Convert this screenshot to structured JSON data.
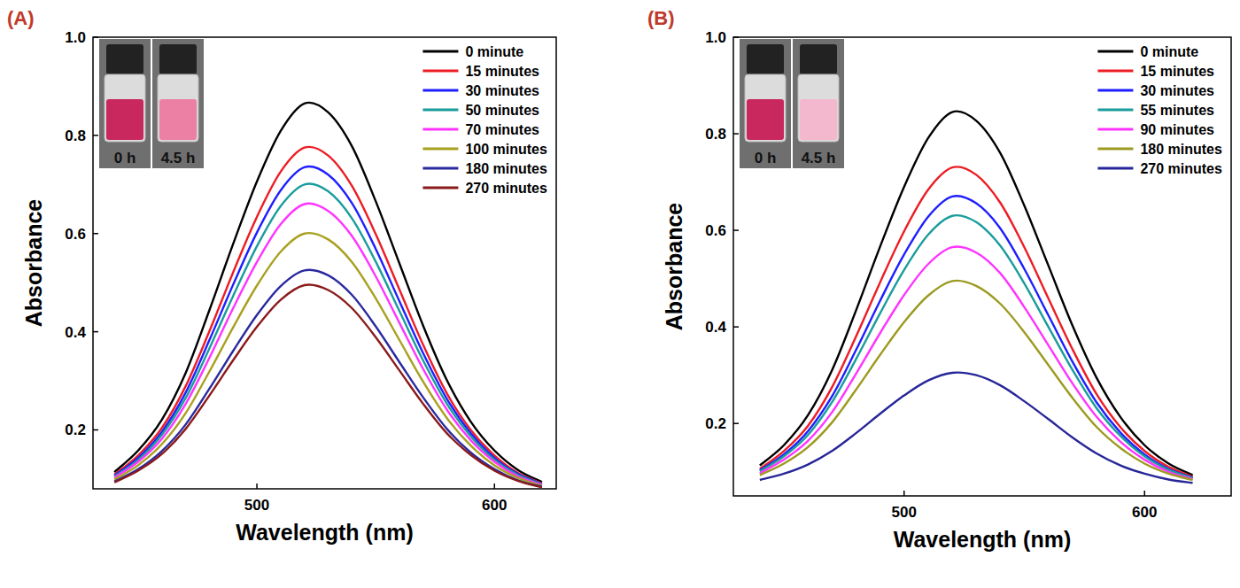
{
  "chart_data": [
    {
      "type": "line",
      "title": "(A)",
      "x_label": "Wavelength (nm)",
      "y_label": "Absorbance",
      "annotations": [
        "0 h",
        "4.5 h"
      ],
      "legend": "upper right",
      "x": [
        440,
        450,
        460,
        470,
        480,
        490,
        500,
        510,
        520,
        530,
        540,
        550,
        560,
        570,
        580,
        590,
        600,
        610,
        620
      ],
      "xlim": [
        431,
        626
      ],
      "xticks": [
        500,
        600
      ],
      "ylim": [
        0.08,
        1.0
      ],
      "yticks": [
        0.2,
        0.4,
        0.6,
        0.8,
        {
          "value": 1,
          "label": "1.0"
        }
      ],
      "series": [
        {
          "name": "0 minute",
          "color": "#000000",
          "values": [
            0.114,
            0.158,
            0.221,
            0.316,
            0.444,
            0.579,
            0.706,
            0.809,
            0.865,
            0.847,
            0.778,
            0.666,
            0.539,
            0.412,
            0.301,
            0.217,
            0.158,
            0.118,
            0.094
          ]
        },
        {
          "name": "15 minutes",
          "color": "#ed1c24",
          "values": [
            0.109,
            0.148,
            0.204,
            0.289,
            0.401,
            0.521,
            0.634,
            0.726,
            0.775,
            0.759,
            0.697,
            0.599,
            0.486,
            0.373,
            0.274,
            0.2,
            0.148,
            0.112,
            0.091
          ]
        },
        {
          "name": "30 minutes",
          "color": "#1f1fff",
          "values": [
            0.107,
            0.143,
            0.196,
            0.276,
            0.383,
            0.496,
            0.602,
            0.688,
            0.735,
            0.72,
            0.662,
            0.569,
            0.462,
            0.356,
            0.263,
            0.193,
            0.143,
            0.11,
            0.09
          ]
        },
        {
          "name": "50 minutes",
          "color": "#1a9c9c",
          "values": [
            0.105,
            0.139,
            0.19,
            0.265,
            0.366,
            0.473,
            0.574,
            0.656,
            0.7,
            0.686,
            0.631,
            0.543,
            0.442,
            0.341,
            0.253,
            0.187,
            0.139,
            0.108,
            0.089
          ]
        },
        {
          "name": "70 minutes",
          "color": "#ff33ff",
          "values": [
            0.103,
            0.135,
            0.182,
            0.253,
            0.347,
            0.448,
            0.542,
            0.619,
            0.66,
            0.646,
            0.595,
            0.513,
            0.418,
            0.324,
            0.241,
            0.179,
            0.135,
            0.105,
            0.088
          ]
        },
        {
          "name": "100 minutes",
          "color": "#a8a020",
          "values": [
            0.099,
            0.128,
            0.171,
            0.234,
            0.319,
            0.409,
            0.494,
            0.563,
            0.6,
            0.588,
            0.542,
            0.468,
            0.383,
            0.298,
            0.224,
            0.168,
            0.128,
            0.102,
            0.086
          ]
        },
        {
          "name": "180 minutes",
          "color": "#2a2aa0",
          "values": [
            0.095,
            0.12,
            0.157,
            0.211,
            0.284,
            0.361,
            0.434,
            0.493,
            0.525,
            0.515,
            0.475,
            0.411,
            0.338,
            0.266,
            0.202,
            0.154,
            0.12,
            0.097,
            0.084
          ]
        },
        {
          "name": "270 minutes",
          "color": "#8b1a1a",
          "values": [
            0.093,
            0.117,
            0.151,
            0.202,
            0.27,
            0.342,
            0.41,
            0.465,
            0.495,
            0.485,
            0.448,
            0.389,
            0.321,
            0.253,
            0.193,
            0.149,
            0.117,
            0.096,
            0.083
          ]
        }
      ]
    },
    {
      "type": "line",
      "title": "(B)",
      "x_label": "Wavelength (nm)",
      "y_label": "Absorbance",
      "annotations": [
        "0 h",
        "4.5 h"
      ],
      "legend": "upper right",
      "x": [
        440,
        450,
        460,
        470,
        480,
        490,
        500,
        510,
        520,
        530,
        540,
        550,
        560,
        570,
        580,
        590,
        600,
        610,
        620
      ],
      "xlim": [
        429,
        636
      ],
      "xticks": [
        500,
        600
      ],
      "ylim": [
        0.05,
        1.0
      ],
      "yticks": [
        0.2,
        0.4,
        0.6,
        0.8,
        {
          "value": 1,
          "label": "1.0"
        }
      ],
      "series": [
        {
          "name": "0 minute",
          "color": "#000000",
          "values": [
            0.113,
            0.155,
            0.217,
            0.31,
            0.434,
            0.566,
            0.69,
            0.791,
            0.845,
            0.827,
            0.76,
            0.651,
            0.527,
            0.403,
            0.295,
            0.213,
            0.155,
            0.117,
            0.093
          ]
        },
        {
          "name": "15 minutes",
          "color": "#ed1c24",
          "values": [
            0.106,
            0.143,
            0.195,
            0.275,
            0.38,
            0.492,
            0.598,
            0.684,
            0.73,
            0.715,
            0.657,
            0.565,
            0.459,
            0.354,
            0.261,
            0.192,
            0.143,
            0.11,
            0.09
          ]
        },
        {
          "name": "30 minutes",
          "color": "#1e1eff",
          "values": [
            0.103,
            0.136,
            0.184,
            0.256,
            0.352,
            0.454,
            0.55,
            0.628,
            0.67,
            0.656,
            0.604,
            0.52,
            0.424,
            0.328,
            0.244,
            0.181,
            0.136,
            0.106,
            0.088
          ]
        },
        {
          "name": "55 minutes",
          "color": "#1a9c9c",
          "values": [
            0.101,
            0.132,
            0.176,
            0.244,
            0.333,
            0.428,
            0.518,
            0.591,
            0.63,
            0.617,
            0.568,
            0.49,
            0.4,
            0.311,
            0.232,
            0.174,
            0.132,
            0.104,
            0.087
          ]
        },
        {
          "name": "90 minutes",
          "color": "#ff33ff",
          "values": [
            0.097,
            0.125,
            0.164,
            0.223,
            0.303,
            0.387,
            0.466,
            0.53,
            0.565,
            0.554,
            0.511,
            0.441,
            0.362,
            0.283,
            0.214,
            0.162,
            0.125,
            0.1,
            0.085
          ]
        },
        {
          "name": "180 minutes",
          "color": "#9c9a20",
          "values": [
            0.093,
            0.117,
            0.151,
            0.202,
            0.27,
            0.342,
            0.41,
            0.465,
            0.495,
            0.485,
            0.448,
            0.389,
            0.321,
            0.253,
            0.193,
            0.149,
            0.117,
            0.096,
            0.083
          ]
        },
        {
          "name": "270 minutes",
          "color": "#262699",
          "values": [
            0.083,
            0.096,
            0.115,
            0.143,
            0.18,
            0.22,
            0.258,
            0.289,
            0.305,
            0.3,
            0.279,
            0.246,
            0.209,
            0.171,
            0.138,
            0.113,
            0.096,
            0.084,
            0.077
          ]
        }
      ]
    }
  ]
}
